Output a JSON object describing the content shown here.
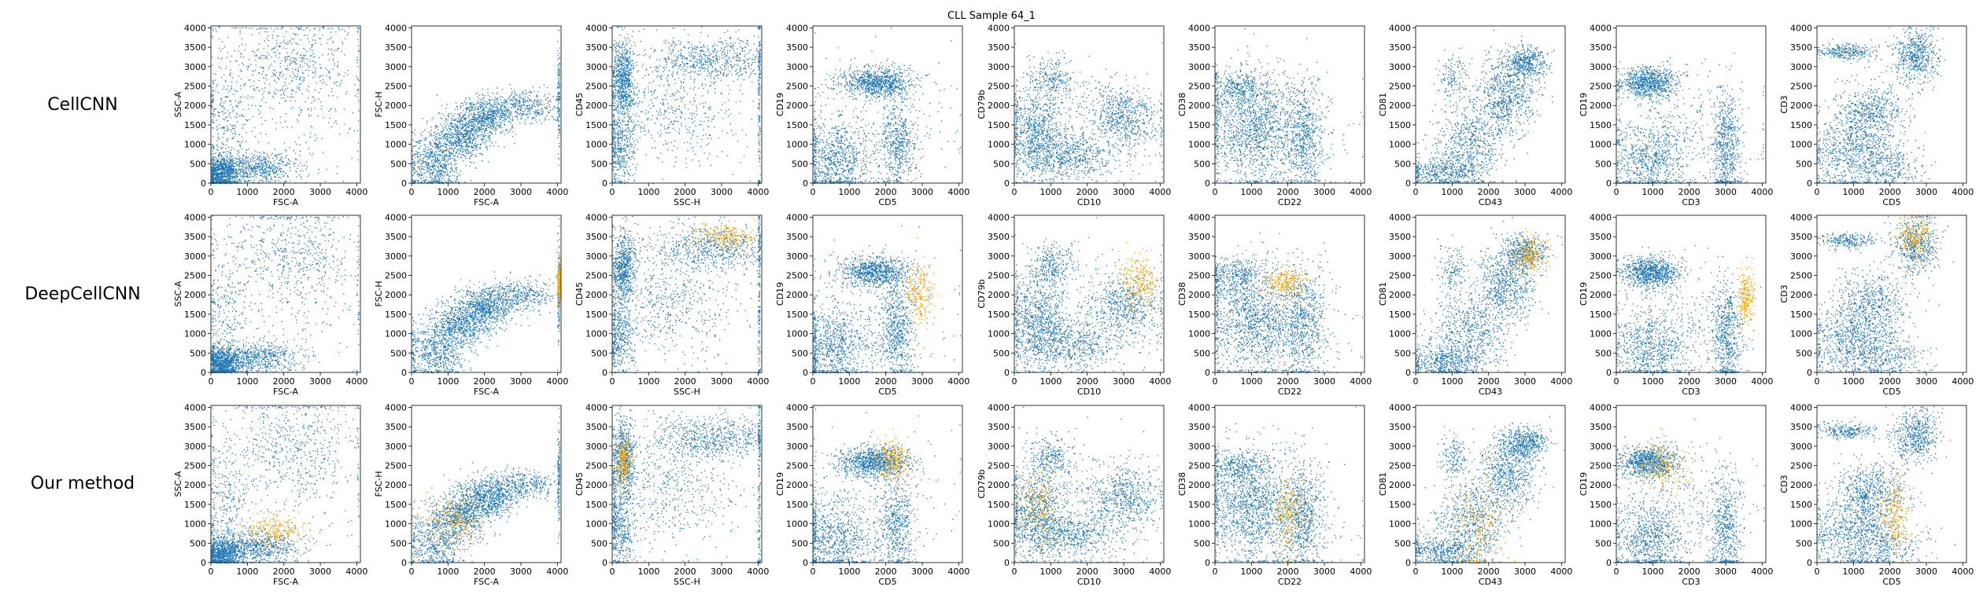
{
  "chart_data": {
    "type": "scatter",
    "title": "CLL Sample 64_1",
    "row_labels": [
      "CellCNN",
      "DeepCellCNN",
      "Our method"
    ],
    "xlim": [
      0,
      4100
    ],
    "ylim": [
      0,
      4050
    ],
    "x_ticks": [
      0,
      1000,
      2000,
      3000,
      4000
    ],
    "y_ticks": [
      0,
      500,
      1000,
      1500,
      2000,
      2500,
      3000,
      3500,
      4000
    ],
    "colors": {
      "background_cells": "#1f77b4",
      "selected_cells": "#f5a700"
    },
    "panels": [
      {
        "x": "FSC-A",
        "y": "SSC-A"
      },
      {
        "x": "FSC-A",
        "y": "FSC-H"
      },
      {
        "x": "SSC-H",
        "y": "CD45"
      },
      {
        "x": "CD5",
        "y": "CD19"
      },
      {
        "x": "CD10",
        "y": "CD79b"
      },
      {
        "x": "CD22",
        "y": "CD38"
      },
      {
        "x": "CD43",
        "y": "CD81"
      },
      {
        "x": "CD3",
        "y": "CD19"
      },
      {
        "x": "CD5",
        "y": "CD3"
      }
    ],
    "selected_clusters": [
      [
        [],
        [],
        [],
        [],
        [],
        [],
        [],
        [],
        []
      ],
      [
        [],
        [
          [
            4050,
            2300,
            40,
            250
          ]
        ],
        [
          [
            3100,
            3500,
            500,
            200
          ]
        ],
        [
          [
            2900,
            2000,
            200,
            400
          ]
        ],
        [
          [
            3400,
            2400,
            250,
            350
          ]
        ],
        [
          [
            1900,
            2300,
            250,
            200
          ]
        ],
        [
          [
            3100,
            3000,
            250,
            300
          ]
        ],
        [
          [
            3550,
            1900,
            120,
            350
          ]
        ],
        [
          [
            2700,
            3500,
            250,
            300
          ]
        ]
      ],
      [
        [
          [
            1700,
            850,
            400,
            200
          ]
        ],
        [
          [
            1200,
            1100,
            450,
            350
          ]
        ],
        [
          [
            300,
            2600,
            100,
            300
          ]
        ],
        [
          [
            2200,
            2650,
            220,
            300
          ]
        ],
        [
          [
            700,
            1400,
            300,
            500
          ]
        ],
        [
          [
            2000,
            1200,
            250,
            600
          ]
        ],
        [
          [
            1700,
            900,
            350,
            600
          ]
        ],
        [
          [
            1300,
            2500,
            350,
            350
          ]
        ],
        [
          [
            2100,
            1200,
            200,
            500
          ]
        ]
      ]
    ]
  }
}
